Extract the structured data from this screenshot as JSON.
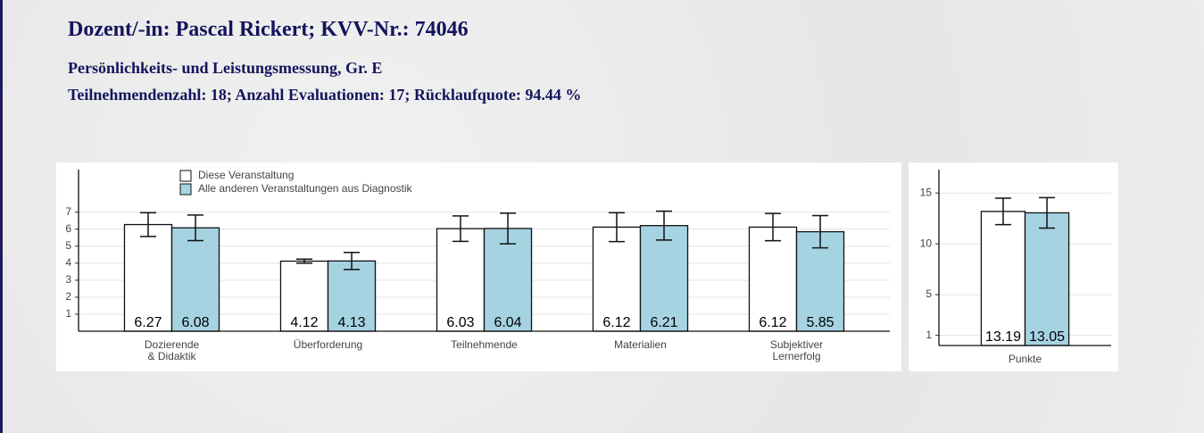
{
  "header": {
    "title": "Dozent/-in: Pascal Rickert; KVV-Nr.: 74046",
    "course": "Persönlichkeits- und Leistungsmessung, Gr. E",
    "stats": "Teilnehmendenzahl: 18; Anzahl Evaluationen: 17; Rücklaufquote: 94.44 %"
  },
  "chart_data": [
    {
      "type": "bar",
      "categories": [
        [
          "Dozierende",
          "& Didaktik"
        ],
        [
          "Überforderung"
        ],
        [
          "Teilnehmende"
        ],
        [
          "Materialien"
        ],
        [
          "Subjektiver",
          "Lernerfolg"
        ]
      ],
      "series": [
        {
          "name": "Diese Veranstaltung",
          "color": "#ffffff",
          "values": [
            6.27,
            4.12,
            6.03,
            6.12,
            6.12
          ],
          "errors": [
            0.7,
            0.12,
            0.75,
            0.85,
            0.8
          ]
        },
        {
          "name": "Alle anderen Veranstaltungen aus Diagnostik",
          "color": "#a6d3e2",
          "values": [
            6.08,
            4.13,
            6.04,
            6.21,
            5.85
          ],
          "errors": [
            0.75,
            0.5,
            0.9,
            0.85,
            0.95
          ]
        }
      ],
      "ylim": [
        0,
        9.5
      ],
      "yticks": [
        1,
        2,
        3,
        4,
        5,
        6,
        7
      ],
      "grid": true,
      "legend": "top-left"
    },
    {
      "type": "bar",
      "categories": [
        [
          "Punkte"
        ]
      ],
      "series": [
        {
          "color": "#ffffff",
          "values": [
            13.19
          ],
          "errors": [
            1.3
          ]
        },
        {
          "color": "#a6d3e2",
          "values": [
            13.05
          ],
          "errors": [
            1.5
          ]
        }
      ],
      "ylim": [
        0,
        17.3
      ],
      "yticks": [
        1,
        5,
        10,
        15
      ],
      "grid": true
    }
  ]
}
